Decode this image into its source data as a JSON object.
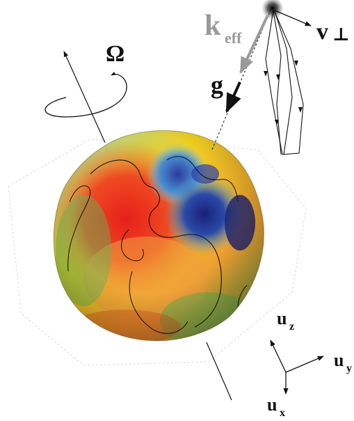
{
  "labels": {
    "omega": "Ω",
    "k_main": "k",
    "k_sub": "eff",
    "v_main": "v",
    "v_sub": "⊥",
    "g": "g",
    "uz_main": "u",
    "uz_sub": "z",
    "uy_main": "u",
    "uy_sub": "y",
    "ux_main": "u",
    "ux_sub": "x"
  },
  "colors": {
    "keff_arrow": "#9a9a9a",
    "lines": "#111111",
    "geoid_high": "#e8241c",
    "geoid_mid": "#f2d21c",
    "geoid_low": "#1a2e8c"
  },
  "icons": {
    "globe": "geoid-potato-globe",
    "atom_source": "atom-cloud-glow"
  }
}
